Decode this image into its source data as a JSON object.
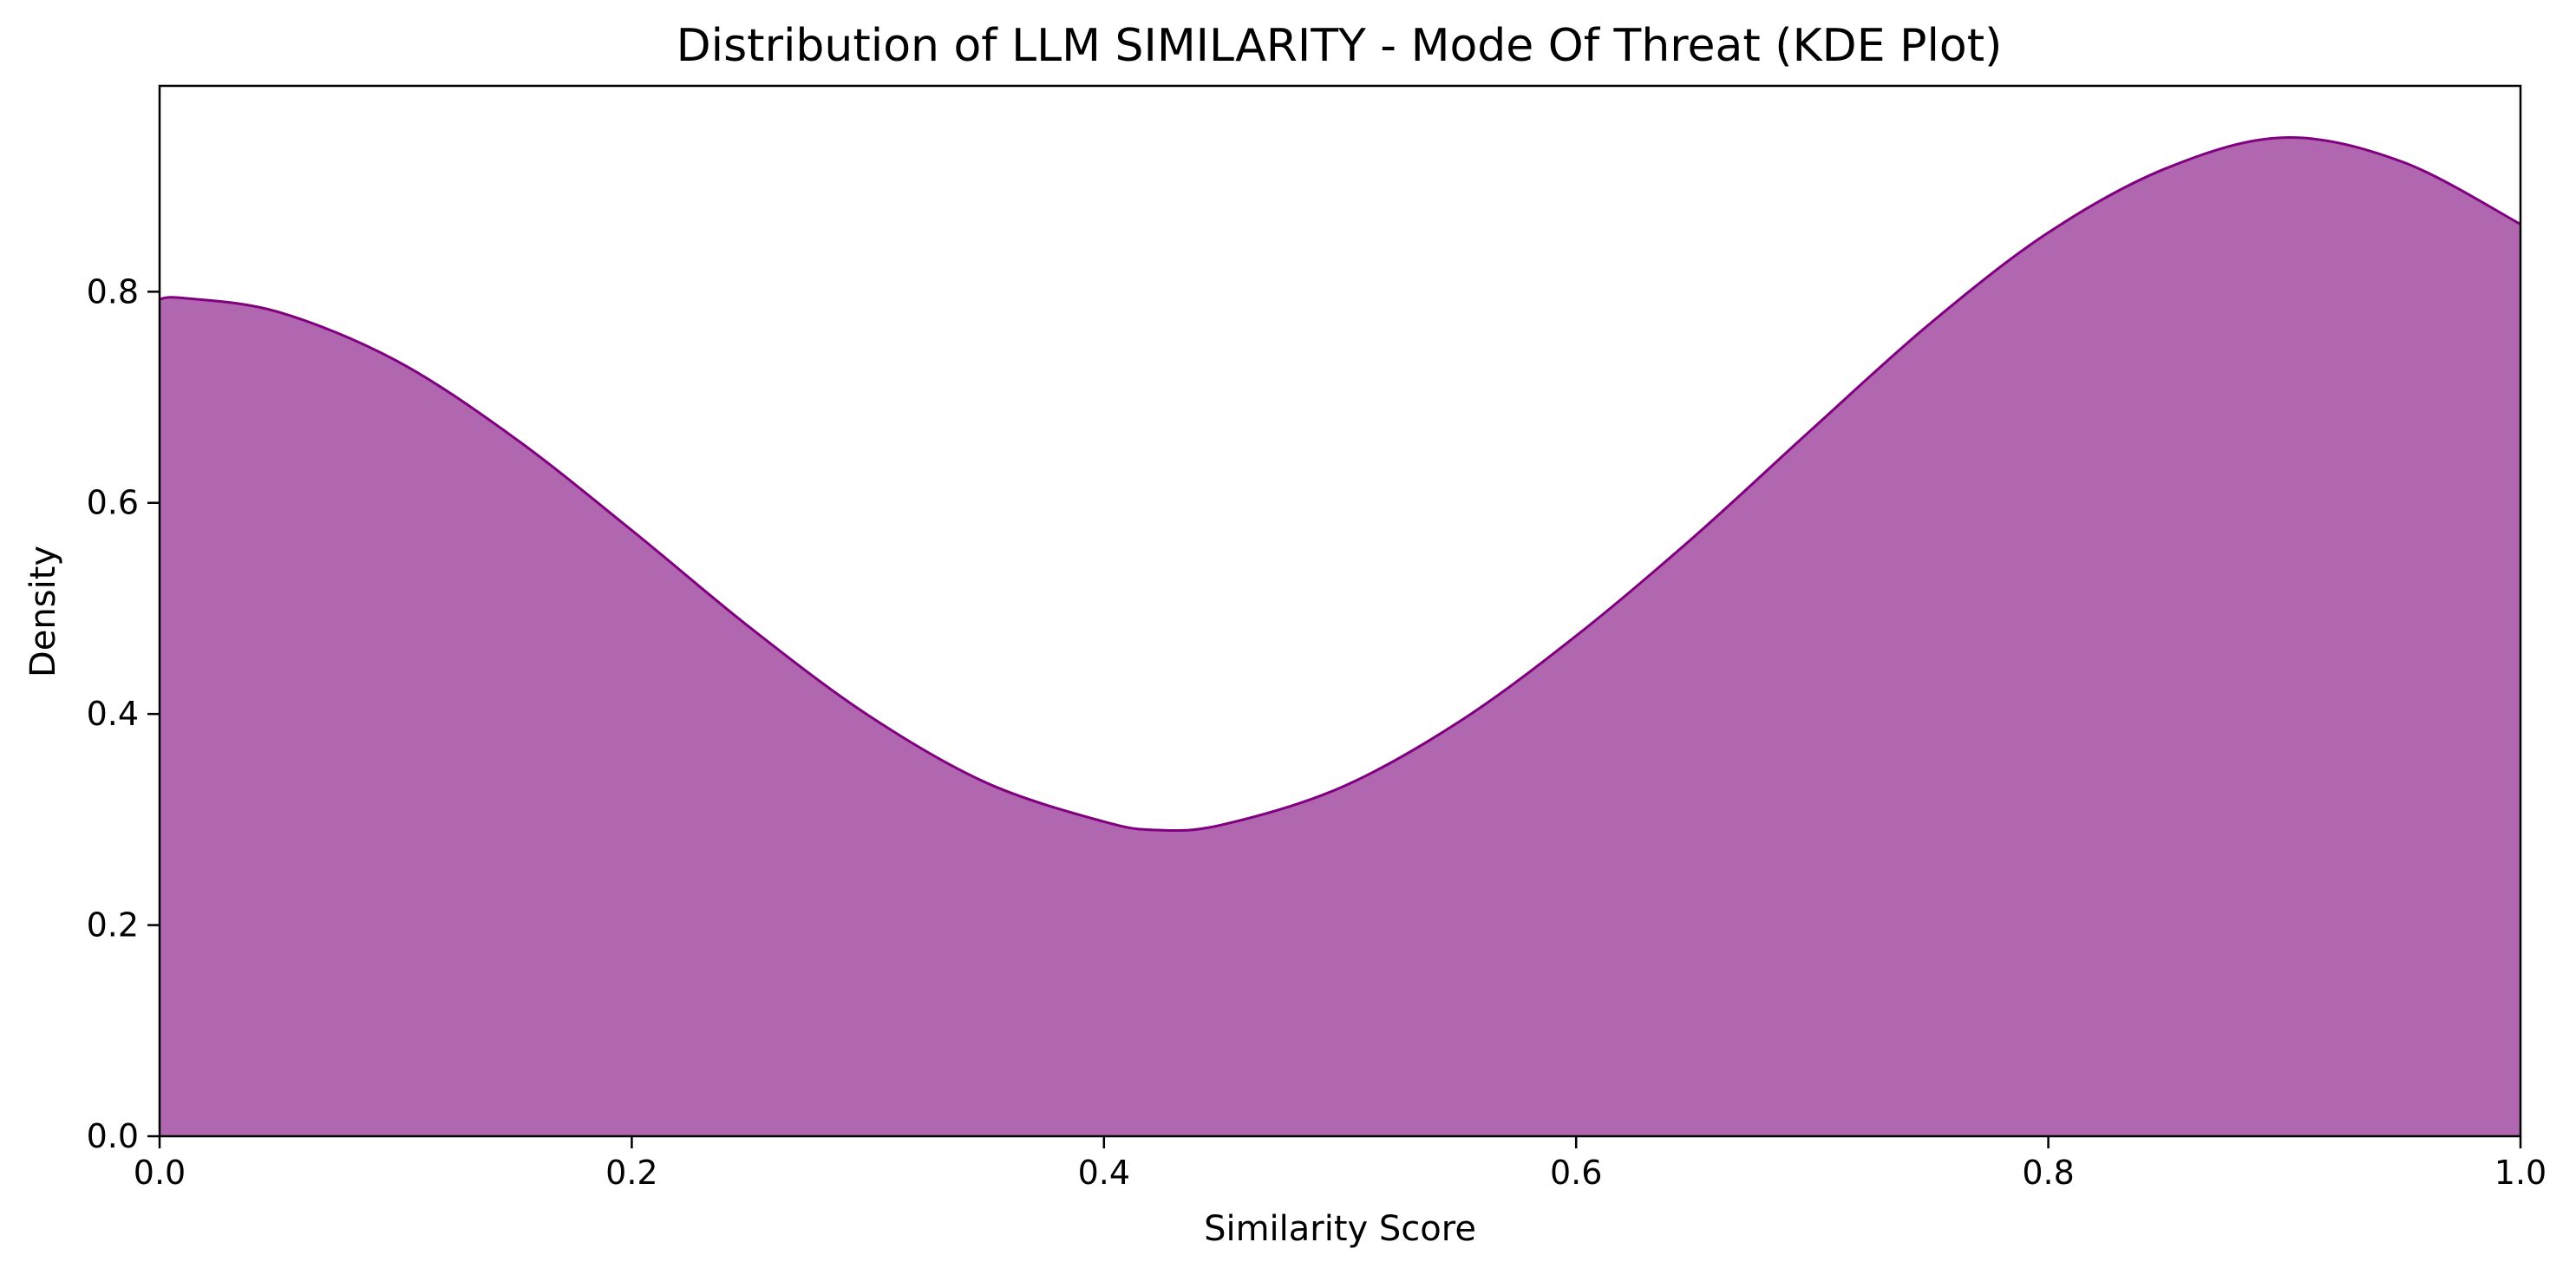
{
  "chart_data": {
    "type": "area",
    "title": "Distribution of LLM SIMILARITY - Mode Of Threat (KDE Plot)",
    "xlabel": "Similarity Score",
    "ylabel": "Density",
    "xlim": [
      0.0,
      1.0
    ],
    "ylim": [
      0.0,
      0.995
    ],
    "xticks": [
      "0.0",
      "0.2",
      "0.4",
      "0.6",
      "0.8",
      "1.0"
    ],
    "yticks": [
      "0.0",
      "0.2",
      "0.4",
      "0.6",
      "0.8"
    ],
    "grid": false,
    "legend": "none",
    "fill_color": "#b166b0",
    "line_color": "#800080",
    "series": [
      {
        "x": [
          0.0,
          0.01,
          0.05,
          0.1,
          0.15,
          0.2,
          0.25,
          0.3,
          0.35,
          0.4,
          0.423,
          0.45,
          0.5,
          0.55,
          0.6,
          0.65,
          0.7,
          0.75,
          0.8,
          0.85,
          0.9,
          0.95,
          1.0
        ],
        "values": [
          0.793,
          0.794,
          0.781,
          0.735,
          0.662,
          0.574,
          0.482,
          0.399,
          0.335,
          0.298,
          0.29,
          0.295,
          0.33,
          0.392,
          0.474,
          0.568,
          0.67,
          0.77,
          0.856,
          0.917,
          0.946,
          0.923,
          0.864
        ]
      }
    ]
  }
}
